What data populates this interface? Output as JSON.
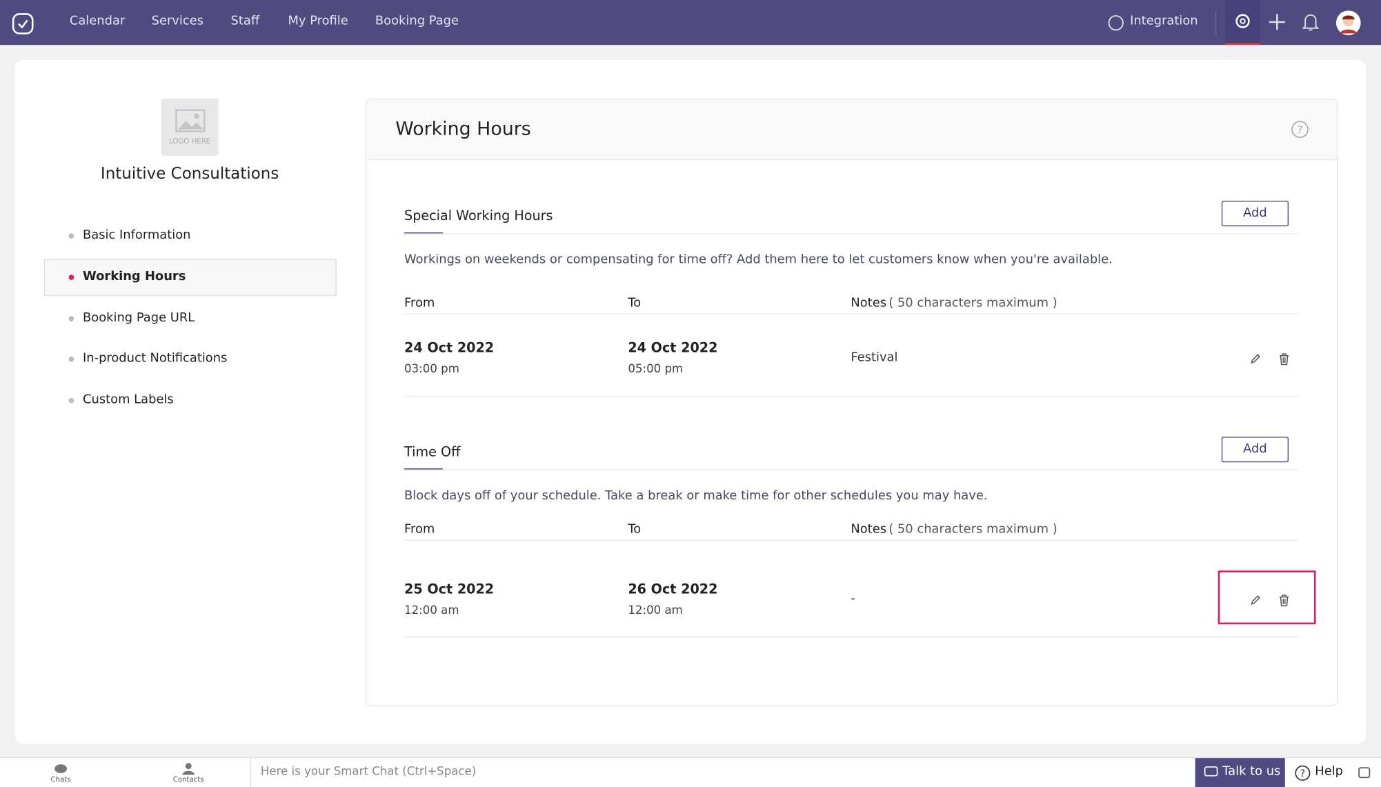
{
  "nav": {
    "items": [
      "Calendar",
      "Services",
      "Staff",
      "My Profile",
      "Booking Page"
    ],
    "integration": "Integration"
  },
  "sidebar": {
    "logo_placeholder": "LOGO HERE",
    "company": "Intuitive Consultations",
    "menu": [
      "Basic Information",
      "Working Hours",
      "Booking Page URL",
      "In-product Notifications",
      "Custom Labels"
    ]
  },
  "panel": {
    "title": "Working Hours",
    "sections": [
      {
        "title": "Special Working Hours",
        "button": "Add",
        "description": "Workings on weekends or compensating for time off? Add them here to let customers know when you're available.",
        "columns": [
          "From",
          "To",
          "Notes",
          "( 50 characters maximum )"
        ],
        "rows": [
          {
            "from_date": "24 Oct 2022",
            "from_time": "03:00 pm",
            "to_date": "24 Oct 2022",
            "to_time": "05:00 pm",
            "notes": "Festival"
          }
        ]
      },
      {
        "title": "Time Off",
        "button": "Add",
        "description": "Block days off of your schedule. Take a break or make time for other schedules you may have.",
        "columns": [
          "From",
          "To",
          "Notes",
          "( 50 characters maximum )"
        ],
        "rows": [
          {
            "from_date": "25 Oct 2022",
            "from_time": "12:00 am",
            "to_date": "26 Oct 2022",
            "to_time": "12:00 am",
            "notes": "-"
          }
        ]
      }
    ]
  },
  "footer": {
    "chats": "Chats",
    "contacts": "Contacts",
    "chat_placeholder": "Here is your Smart Chat (Ctrl+Space)",
    "talk": "Talk to us",
    "help": "Help"
  }
}
